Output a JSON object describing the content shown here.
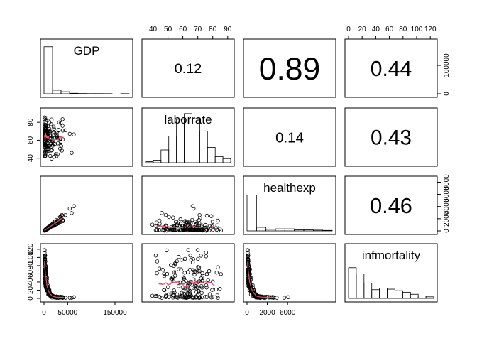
{
  "chart_data": {
    "type": "scatter",
    "variables": [
      "GDP",
      "laborrate",
      "healthexp",
      "infmortality"
    ],
    "ranges": {
      "GDP": [
        0,
        180000
      ],
      "laborrate": [
        35,
        92
      ],
      "healthexp": [
        0,
        8400
      ],
      "infmortality": [
        0,
        125
      ]
    },
    "axis_ticks": {
      "top": {
        "laborrate": [
          "40",
          "50",
          "60",
          "70",
          "80",
          "90"
        ],
        "infmortality": [
          "0",
          "20",
          "40",
          "60",
          "80",
          "100",
          "120"
        ]
      },
      "bottom": {
        "GDP": [
          "0",
          "50000",
          "150000"
        ],
        "healthexp": [
          "0",
          "2000",
          "6000"
        ]
      },
      "left": {
        "laborrate": [
          "40",
          "60",
          "80"
        ],
        "infmortality": [
          "0",
          "20",
          "40",
          "60",
          "80",
          "100",
          "120"
        ]
      },
      "right": {
        "GDP": [
          "0",
          "100000"
        ],
        "healthexp": [
          "0",
          "2000",
          "4000",
          "6000",
          "8000"
        ]
      }
    },
    "tick_values": {
      "GDP": [
        0,
        50000,
        150000
      ],
      "laborrate": [
        40,
        50,
        60,
        70,
        80,
        90
      ],
      "healthexp": [
        0,
        2000,
        4000,
        6000,
        8000
      ],
      "infmortality": [
        0,
        20,
        40,
        60,
        80,
        100,
        120
      ],
      "right_GDP": [
        0,
        100000
      ],
      "left_laborrate": [
        40,
        60,
        80
      ]
    },
    "correlations": [
      {
        "row": 0,
        "col": 1,
        "label": "0.12",
        "value": 0.12
      },
      {
        "row": 0,
        "col": 2,
        "label": "0.89",
        "value": 0.89
      },
      {
        "row": 0,
        "col": 3,
        "label": "0.44",
        "value": 0.44
      },
      {
        "row": 1,
        "col": 2,
        "label": "0.14",
        "value": 0.14
      },
      {
        "row": 1,
        "col": 3,
        "label": "0.43",
        "value": 0.43
      },
      {
        "row": 2,
        "col": 3,
        "label": "0.46",
        "value": 0.46
      }
    ],
    "histograms": {
      "GDP": [
        0.92,
        0.07,
        0.04,
        0.01,
        0.005,
        0.003,
        0.003,
        0.002,
        0.0,
        0.002
      ],
      "laborrate": [
        0.02,
        0.05,
        0.25,
        0.52,
        0.85,
        0.96,
        0.86,
        0.62,
        0.3,
        0.12,
        0.08
      ],
      "healthexp": [
        0.7,
        0.07,
        0.03,
        0.04,
        0.04,
        0.02,
        0.02,
        0.015,
        0.01
      ],
      "infmortality": [
        0.6,
        0.48,
        0.3,
        0.17,
        0.2,
        0.18,
        0.15,
        0.12,
        0.08,
        0.05,
        0.03
      ]
    },
    "smoothers_color": "#df536b",
    "points_color": "#000000",
    "seed": 12345
  }
}
